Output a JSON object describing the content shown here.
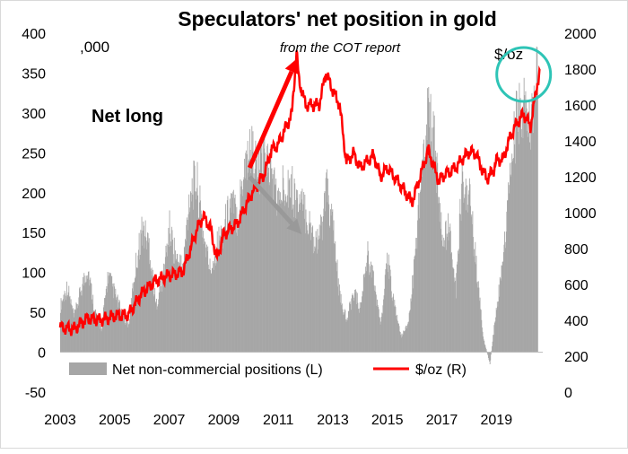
{
  "chart_data": {
    "type": "bar+line",
    "title": "Speculators' net position in gold",
    "subtitle": "from the COT report",
    "left_unit_label": ",000",
    "right_unit_label": "$/oz",
    "annotation": "Net long",
    "x": {
      "range": [
        2003.0,
        2020.7
      ],
      "tick_labels": [
        "2003",
        "2005",
        "2007",
        "2009",
        "2011",
        "2013",
        "2015",
        "2017",
        "2019"
      ],
      "tick_values": [
        2003,
        2005,
        2007,
        2009,
        2011,
        2013,
        2015,
        2017,
        2019
      ]
    },
    "y_left": {
      "range": [
        -50,
        400
      ],
      "tick_labels": [
        "-50",
        "0",
        "50",
        "100",
        "150",
        "200",
        "250",
        "300",
        "350",
        "400"
      ],
      "tick_values": [
        -50,
        0,
        50,
        100,
        150,
        200,
        250,
        300,
        350,
        400
      ]
    },
    "y_right": {
      "range": [
        0,
        2000
      ],
      "tick_labels": [
        "0",
        "200",
        "400",
        "600",
        "800",
        "1000",
        "1200",
        "1400",
        "1600",
        "1800",
        "2000"
      ],
      "tick_values": [
        0,
        200,
        400,
        600,
        800,
        1000,
        1200,
        1400,
        1600,
        1800,
        2000
      ]
    },
    "grid": false,
    "legend_placement": "bottom",
    "series": [
      {
        "name": "Net non-commercial positions (L)",
        "kind": "bar",
        "axis": "left",
        "color": "#a6a6a6",
        "points": [
          [
            2003.0,
            60
          ],
          [
            2003.25,
            85
          ],
          [
            2003.5,
            45
          ],
          [
            2003.75,
            80
          ],
          [
            2004.0,
            110
          ],
          [
            2004.25,
            55
          ],
          [
            2004.5,
            30
          ],
          [
            2004.75,
            100
          ],
          [
            2005.0,
            75
          ],
          [
            2005.25,
            50
          ],
          [
            2005.5,
            35
          ],
          [
            2005.75,
            110
          ],
          [
            2006.0,
            160
          ],
          [
            2006.25,
            140
          ],
          [
            2006.5,
            60
          ],
          [
            2006.75,
            95
          ],
          [
            2007.0,
            160
          ],
          [
            2007.25,
            120
          ],
          [
            2007.5,
            110
          ],
          [
            2007.75,
            210
          ],
          [
            2008.0,
            220
          ],
          [
            2008.25,
            150
          ],
          [
            2008.5,
            105
          ],
          [
            2008.75,
            140
          ],
          [
            2009.0,
            160
          ],
          [
            2009.25,
            195
          ],
          [
            2009.5,
            175
          ],
          [
            2009.75,
            245
          ],
          [
            2010.0,
            265
          ],
          [
            2010.25,
            230
          ],
          [
            2010.5,
            255
          ],
          [
            2010.75,
            230
          ],
          [
            2011.0,
            190
          ],
          [
            2011.25,
            225
          ],
          [
            2011.5,
            210
          ],
          [
            2011.75,
            190
          ],
          [
            2012.0,
            180
          ],
          [
            2012.25,
            150
          ],
          [
            2012.5,
            145
          ],
          [
            2012.75,
            210
          ],
          [
            2013.0,
            160
          ],
          [
            2013.25,
            70
          ],
          [
            2013.5,
            40
          ],
          [
            2013.75,
            80
          ],
          [
            2014.0,
            55
          ],
          [
            2014.25,
            130
          ],
          [
            2014.5,
            90
          ],
          [
            2014.75,
            35
          ],
          [
            2015.0,
            120
          ],
          [
            2015.25,
            60
          ],
          [
            2015.5,
            20
          ],
          [
            2015.75,
            35
          ],
          [
            2016.0,
            120
          ],
          [
            2016.25,
            240
          ],
          [
            2016.5,
            315
          ],
          [
            2016.75,
            260
          ],
          [
            2017.0,
            140
          ],
          [
            2017.25,
            160
          ],
          [
            2017.5,
            80
          ],
          [
            2017.75,
            230
          ],
          [
            2018.0,
            200
          ],
          [
            2018.25,
            110
          ],
          [
            2018.5,
            20
          ],
          [
            2018.75,
            -15
          ],
          [
            2019.0,
            60
          ],
          [
            2019.25,
            120
          ],
          [
            2019.5,
            230
          ],
          [
            2019.75,
            305
          ],
          [
            2020.0,
            315
          ],
          [
            2020.25,
            280
          ],
          [
            2020.5,
            355
          ]
        ]
      },
      {
        "name": "$/oz (R)",
        "kind": "line",
        "axis": "right",
        "color": "#ff0000",
        "points": [
          [
            2003.0,
            360
          ],
          [
            2003.5,
            350
          ],
          [
            2004.0,
            410
          ],
          [
            2004.5,
            400
          ],
          [
            2005.0,
            425
          ],
          [
            2005.5,
            430
          ],
          [
            2006.0,
            550
          ],
          [
            2006.5,
            620
          ],
          [
            2007.0,
            650
          ],
          [
            2007.5,
            670
          ],
          [
            2008.0,
            900
          ],
          [
            2008.25,
            980
          ],
          [
            2008.5,
            920
          ],
          [
            2008.75,
            740
          ],
          [
            2009.0,
            880
          ],
          [
            2009.5,
            940
          ],
          [
            2010.0,
            1100
          ],
          [
            2010.5,
            1220
          ],
          [
            2010.75,
            1350
          ],
          [
            2011.0,
            1380
          ],
          [
            2011.5,
            1550
          ],
          [
            2011.67,
            1900
          ],
          [
            2011.75,
            1750
          ],
          [
            2012.0,
            1600
          ],
          [
            2012.5,
            1600
          ],
          [
            2012.75,
            1780
          ],
          [
            2013.0,
            1680
          ],
          [
            2013.25,
            1600
          ],
          [
            2013.5,
            1280
          ],
          [
            2013.75,
            1330
          ],
          [
            2014.0,
            1250
          ],
          [
            2014.5,
            1320
          ],
          [
            2014.75,
            1200
          ],
          [
            2015.0,
            1250
          ],
          [
            2015.5,
            1150
          ],
          [
            2015.9,
            1060
          ],
          [
            2016.0,
            1100
          ],
          [
            2016.5,
            1350
          ],
          [
            2016.9,
            1170
          ],
          [
            2017.0,
            1200
          ],
          [
            2017.5,
            1250
          ],
          [
            2017.75,
            1300
          ],
          [
            2018.0,
            1340
          ],
          [
            2018.25,
            1330
          ],
          [
            2018.5,
            1230
          ],
          [
            2018.67,
            1190
          ],
          [
            2018.9,
            1240
          ],
          [
            2019.0,
            1290
          ],
          [
            2019.25,
            1300
          ],
          [
            2019.5,
            1420
          ],
          [
            2019.75,
            1500
          ],
          [
            2020.0,
            1550
          ],
          [
            2020.25,
            1480
          ],
          [
            2020.5,
            1720
          ],
          [
            2020.6,
            1780
          ]
        ]
      }
    ],
    "arrows": [
      {
        "color": "#ff0000",
        "from": [
          2009.95,
          1250
        ],
        "to": [
          2011.7,
          1860
        ]
      },
      {
        "color": "#999999",
        "from": [
          2009.95,
          1200
        ],
        "to": [
          2011.85,
          880
        ]
      }
    ],
    "highlight_circle": {
      "color": "#2ec4b6",
      "center": [
        2020.0,
        1770
      ]
    }
  }
}
